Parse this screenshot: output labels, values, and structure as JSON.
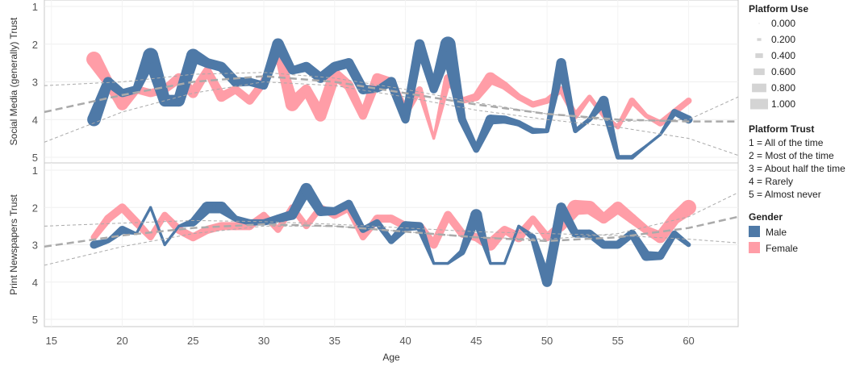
{
  "chart_data": {
    "type": "line",
    "x_label": "Age",
    "x_ticks": [
      15,
      20,
      25,
      30,
      35,
      40,
      45,
      50,
      55,
      60
    ],
    "x_range": [
      14.5,
      63.5
    ],
    "y_ticks": [
      1,
      2,
      3,
      4,
      5
    ],
    "y_range": [
      1,
      5
    ],
    "grid": true,
    "colors": {
      "male": "#4e79a7",
      "female": "#ff9da7",
      "trend": "#aaaaaa",
      "size_swatch": "#d4d4d4"
    },
    "panels": [
      {
        "y_label": "Social Media (generally) Trust",
        "male": {
          "x": [
            18,
            19,
            20,
            21,
            22,
            23,
            24,
            25,
            26,
            27,
            28,
            29,
            30,
            31,
            32,
            33,
            34,
            35,
            36,
            37,
            38,
            39,
            40,
            41,
            42,
            43,
            44,
            45,
            46,
            47,
            48,
            49,
            50,
            51,
            52,
            53,
            54,
            55,
            56,
            57,
            58,
            59,
            60
          ],
          "y": [
            4.0,
            3.0,
            3.3,
            3.2,
            2.3,
            3.5,
            3.5,
            2.3,
            2.5,
            2.6,
            3.0,
            3.0,
            3.1,
            2.0,
            2.7,
            2.6,
            2.9,
            2.6,
            2.5,
            3.2,
            3.2,
            3.0,
            4.0,
            2.0,
            3.2,
            2.0,
            4.0,
            4.8,
            4.0,
            4.0,
            4.1,
            4.3,
            4.3,
            2.5,
            4.3,
            4.0,
            3.5,
            5.0,
            5.0,
            4.7,
            4.4,
            3.8,
            4.0
          ],
          "use": [
            0.7,
            0.5,
            0.4,
            0.4,
            0.8,
            0.6,
            0.6,
            0.7,
            0.5,
            0.5,
            0.5,
            0.4,
            0.4,
            0.6,
            0.4,
            0.5,
            0.5,
            0.5,
            0.5,
            0.5,
            0.3,
            0.5,
            0.4,
            0.5,
            0.4,
            0.8,
            0.4,
            0.3,
            0.5,
            0.4,
            0.3,
            0.3,
            0.2,
            0.5,
            0.2,
            0.2,
            0.5,
            0.2,
            0.2,
            0.1,
            0.1,
            0.3,
            0.4
          ]
        },
        "female": {
          "x": [
            18,
            19,
            20,
            21,
            22,
            23,
            24,
            25,
            26,
            27,
            28,
            29,
            30,
            31,
            32,
            33,
            34,
            35,
            36,
            37,
            38,
            39,
            40,
            41,
            42,
            43,
            44,
            45,
            46,
            47,
            48,
            49,
            50,
            51,
            52,
            53,
            54,
            55,
            56,
            57,
            58,
            59,
            60
          ],
          "y": [
            2.4,
            3.0,
            3.6,
            3.2,
            3.3,
            3.2,
            2.9,
            3.3,
            2.7,
            3.4,
            3.2,
            3.5,
            3.0,
            2.2,
            3.6,
            3.2,
            3.9,
            2.8,
            3.1,
            3.9,
            2.9,
            3.0,
            3.8,
            3.2,
            4.5,
            2.9,
            3.5,
            3.4,
            2.9,
            3.1,
            3.4,
            3.6,
            3.5,
            3.2,
            3.9,
            3.4,
            3.9,
            4.2,
            3.5,
            3.9,
            4.1,
            3.8,
            3.5
          ],
          "use": [
            0.8,
            0.5,
            0.6,
            0.4,
            0.4,
            0.4,
            0.5,
            0.5,
            0.4,
            0.5,
            0.4,
            0.4,
            0.4,
            0.4,
            0.7,
            0.5,
            0.6,
            0.6,
            0.5,
            0.4,
            0.5,
            0.4,
            0.4,
            0.3,
            0.1,
            0.4,
            0.3,
            0.4,
            0.6,
            0.4,
            0.3,
            0.3,
            0.3,
            0.3,
            0.3,
            0.2,
            0.2,
            0.2,
            0.3,
            0.2,
            0.3,
            0.3,
            0.3
          ]
        },
        "trends": [
          {
            "x": [
              14.5,
              20,
              25,
              30,
              35,
              40,
              45,
              50,
              55,
              60,
              63.5
            ],
            "y": [
              3.8,
              3.35,
              3.0,
              2.85,
              3.0,
              3.3,
              3.6,
              3.85,
              4.0,
              4.05,
              4.05
            ],
            "w": 2.5,
            "dash": "9,5"
          },
          {
            "x": [
              14.5,
              20,
              25,
              30,
              35,
              40,
              45,
              50,
              55,
              60,
              63.5
            ],
            "y": [
              3.1,
              3.0,
              2.8,
              2.75,
              2.9,
              3.2,
              3.55,
              3.85,
              4.05,
              4.0,
              3.4
            ],
            "w": 1,
            "dash": "4,3"
          },
          {
            "x": [
              14.5,
              20,
              25,
              30,
              35,
              40,
              45,
              50,
              55,
              60,
              63.5
            ],
            "y": [
              4.6,
              3.8,
              3.3,
              3.0,
              3.1,
              3.4,
              3.75,
              4.0,
              4.2,
              4.5,
              4.95
            ],
            "w": 1,
            "dash": "4,3"
          }
        ]
      },
      {
        "y_label": "Print Newspapers Trust",
        "male": {
          "x": [
            18,
            19,
            20,
            21,
            22,
            23,
            24,
            25,
            26,
            27,
            28,
            29,
            30,
            31,
            32,
            33,
            34,
            35,
            36,
            37,
            38,
            39,
            40,
            41,
            42,
            43,
            44,
            45,
            46,
            47,
            48,
            49,
            50,
            51,
            52,
            53,
            54,
            55,
            56,
            57,
            58,
            59,
            60
          ],
          "y": [
            3.0,
            2.9,
            2.6,
            2.7,
            2.0,
            3.0,
            2.5,
            2.4,
            2.0,
            2.0,
            2.3,
            2.4,
            2.4,
            2.3,
            2.2,
            1.5,
            2.1,
            2.1,
            1.9,
            2.6,
            2.4,
            2.9,
            2.5,
            2.5,
            3.5,
            3.5,
            3.2,
            2.2,
            3.5,
            3.5,
            2.5,
            2.8,
            4.0,
            2.0,
            2.7,
            2.7,
            3.0,
            3.0,
            2.7,
            3.3,
            3.3,
            2.7,
            3.0
          ],
          "use": [
            0.4,
            0.2,
            0.4,
            0.1,
            0.1,
            0.1,
            0.1,
            0.4,
            0.6,
            0.6,
            0.3,
            0.3,
            0.3,
            0.4,
            0.5,
            0.6,
            0.5,
            0.4,
            0.4,
            0.3,
            0.3,
            0.3,
            0.5,
            0.4,
            0.1,
            0.1,
            0.3,
            0.6,
            0.1,
            0.1,
            0.1,
            0.3,
            0.5,
            0.5,
            0.4,
            0.4,
            0.4,
            0.4,
            0.4,
            0.5,
            0.4,
            0.3,
            0.2
          ]
        },
        "female": {
          "x": [
            18,
            19,
            20,
            21,
            22,
            23,
            24,
            25,
            26,
            27,
            28,
            29,
            30,
            31,
            32,
            33,
            34,
            35,
            36,
            37,
            38,
            39,
            40,
            41,
            42,
            43,
            44,
            45,
            46,
            47,
            48,
            49,
            50,
            51,
            52,
            53,
            54,
            55,
            56,
            57,
            58,
            59,
            60
          ],
          "y": [
            2.8,
            2.3,
            2.0,
            2.4,
            2.8,
            2.2,
            2.6,
            2.8,
            2.6,
            2.5,
            2.5,
            2.5,
            2.2,
            2.6,
            2.0,
            2.5,
            2.0,
            2.2,
            2.0,
            2.8,
            2.3,
            2.3,
            2.5,
            2.5,
            3.0,
            2.2,
            2.7,
            2.8,
            3.0,
            2.6,
            2.8,
            2.3,
            2.8,
            2.5,
            2.0,
            2.0,
            2.3,
            2.0,
            2.3,
            2.6,
            2.8,
            2.3,
            2.0
          ],
          "use": [
            0.3,
            0.4,
            0.4,
            0.4,
            0.3,
            0.3,
            0.4,
            0.4,
            0.4,
            0.4,
            0.4,
            0.4,
            0.3,
            0.3,
            0.3,
            0.3,
            0.3,
            0.4,
            0.4,
            0.3,
            0.4,
            0.4,
            0.4,
            0.4,
            0.4,
            0.4,
            0.4,
            0.4,
            0.6,
            0.4,
            0.5,
            0.3,
            0.4,
            0.5,
            0.8,
            0.7,
            0.5,
            0.6,
            0.5,
            0.4,
            0.6,
            0.6,
            0.8
          ]
        },
        "trends": [
          {
            "x": [
              14.5,
              20,
              25,
              30,
              35,
              40,
              45,
              50,
              55,
              60,
              63.5
            ],
            "y": [
              3.05,
              2.75,
              2.55,
              2.45,
              2.5,
              2.65,
              2.8,
              2.9,
              2.8,
              2.55,
              2.25
            ],
            "w": 2.5,
            "dash": "9,5"
          },
          {
            "x": [
              14.5,
              20,
              25,
              30,
              35,
              40,
              45,
              50,
              55,
              60,
              63.5
            ],
            "y": [
              2.5,
              2.42,
              2.35,
              2.38,
              2.45,
              2.55,
              2.65,
              2.7,
              2.75,
              2.85,
              2.95
            ],
            "w": 1,
            "dash": "4,3"
          },
          {
            "x": [
              14.5,
              20,
              25,
              30,
              35,
              40,
              45,
              50,
              55,
              60,
              63.5
            ],
            "y": [
              3.55,
              3.05,
              2.7,
              2.5,
              2.5,
              2.65,
              2.8,
              2.85,
              2.7,
              2.25,
              1.6
            ],
            "w": 1,
            "dash": "4,3"
          }
        ]
      }
    ],
    "legend": {
      "size_title": "Platform Use",
      "size_values": [
        "0.000",
        "0.200",
        "0.400",
        "0.600",
        "0.800",
        "1.000"
      ],
      "trust_title": "Platform Trust",
      "trust_lines": [
        "1 = All of the time",
        "2 = Most of the time",
        "3 = About half the time",
        "4 = Rarely",
        "5 = Almost never"
      ],
      "gender_title": "Gender",
      "gender_items": [
        "Male",
        "Female"
      ]
    }
  }
}
